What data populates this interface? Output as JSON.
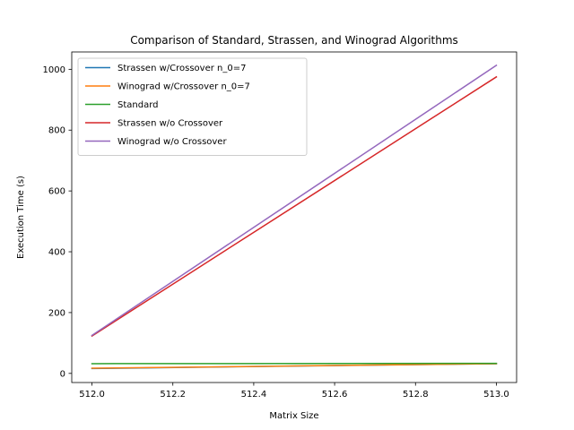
{
  "chart_data": {
    "type": "line",
    "title": "Comparison of Standard, Strassen, and Winograd Algorithms",
    "xlabel": "Matrix Size",
    "ylabel": "Execution Time (s)",
    "x": [
      512,
      513
    ],
    "xlim": [
      511.95,
      513.05
    ],
    "ylim": [
      -30,
      1057
    ],
    "xticks": [
      512.0,
      512.2,
      512.4,
      512.6,
      512.8,
      513.0
    ],
    "xtick_labels": [
      "512.0",
      "512.2",
      "512.4",
      "512.6",
      "512.8",
      "513.0"
    ],
    "yticks": [
      0,
      200,
      400,
      600,
      800,
      1000
    ],
    "ytick_labels": [
      "0",
      "200",
      "400",
      "600",
      "800",
      "1000"
    ],
    "grid": false,
    "legend_position": "top-left",
    "series": [
      {
        "name": "Strassen w/Crossover n_0=7",
        "color": "#1f77b4",
        "values": [
          16,
          32
        ]
      },
      {
        "name": "Winograd w/Crossover n_0=7",
        "color": "#ff7f0e",
        "values": [
          17,
          32
        ]
      },
      {
        "name": "Standard",
        "color": "#2ca02c",
        "values": [
          32,
          33
        ]
      },
      {
        "name": "Strassen w/o Crossover",
        "color": "#d62728",
        "values": [
          123,
          975
        ]
      },
      {
        "name": "Winograd w/o Crossover",
        "color": "#9467bd",
        "values": [
          125,
          1013
        ]
      }
    ]
  }
}
